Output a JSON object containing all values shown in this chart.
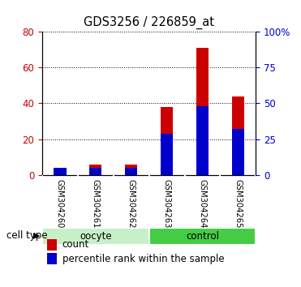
{
  "title": "GDS3256 / 226859_at",
  "samples": [
    "GSM304260",
    "GSM304261",
    "GSM304262",
    "GSM304263",
    "GSM304264",
    "GSM304265"
  ],
  "count_values": [
    2,
    6,
    6,
    38,
    71,
    44
  ],
  "percentile_values": [
    5,
    5,
    5,
    29,
    48,
    32
  ],
  "bar_width": 0.35,
  "count_color": "#cc0000",
  "percentile_color": "#0000cc",
  "ylim_left": [
    0,
    80
  ],
  "yticks_left": [
    0,
    20,
    40,
    60,
    80
  ],
  "yticks_right": [
    0,
    25,
    50,
    75,
    100
  ],
  "yticklabels_right": [
    "0",
    "25",
    "50",
    "75",
    "100%"
  ],
  "left_tick_color": "#cc0000",
  "right_tick_color": "#0000cc",
  "bg_color": "#ffffff",
  "plot_bg": "#ffffff",
  "tick_label_bg": "#cccccc",
  "group_oocyte_color": "#c8f0c8",
  "group_control_color": "#44cc44",
  "legend_count_label": "count",
  "legend_percentile_label": "percentile rank within the sample",
  "cell_type_label": "cell type"
}
